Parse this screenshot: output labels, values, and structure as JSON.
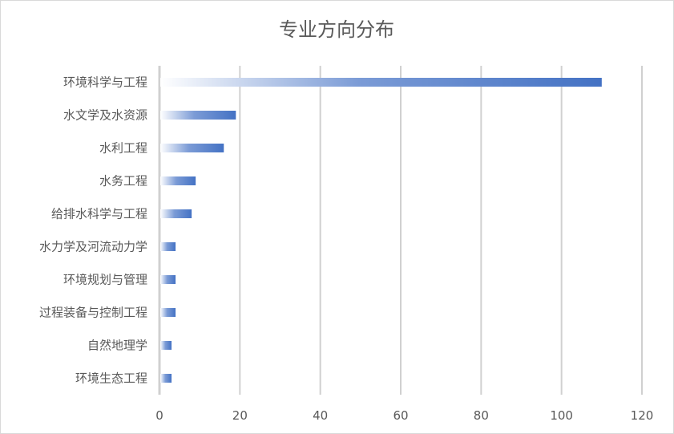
{
  "chart_data": {
    "type": "bar",
    "orientation": "horizontal",
    "title": "专业方向分布",
    "categories": [
      "环境科学与工程",
      "水文学及水资源",
      "水利工程",
      "水务工程",
      "给排水科学与工程",
      "水力学及河流动力学",
      "环境规划与管理",
      "过程装备与控制工程",
      "自然地理学",
      "环境生态工程"
    ],
    "values": [
      110,
      19,
      16,
      9,
      8,
      4,
      4,
      4,
      3,
      3
    ],
    "xlim": [
      0,
      120
    ],
    "xticks": [
      0,
      20,
      40,
      60,
      80,
      100,
      120
    ],
    "grid": true,
    "legend": "none",
    "bar_color": "#4472C4",
    "bar_fill": "gradient white-to-blue"
  }
}
